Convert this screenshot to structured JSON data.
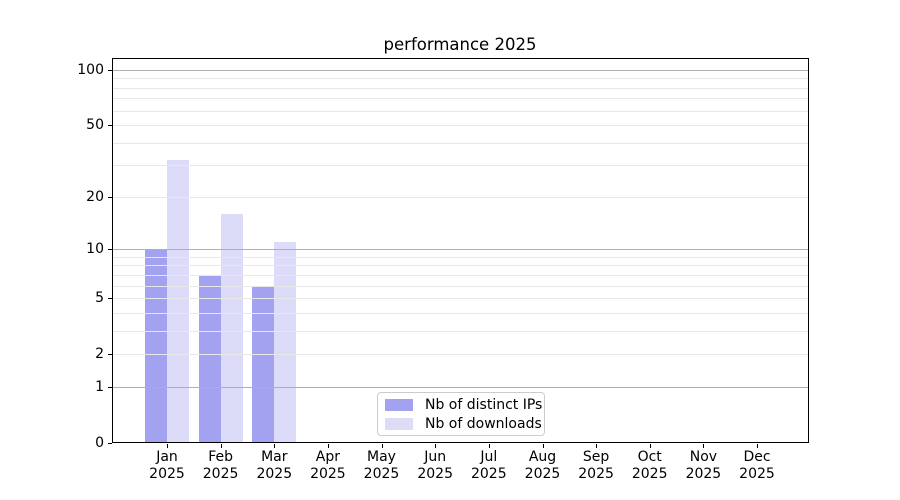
{
  "chart_data": {
    "type": "bar",
    "title": "performance 2025",
    "categories": [
      "Jan 2025",
      "Feb 2025",
      "Mar 2025",
      "Apr 2025",
      "May 2025",
      "Jun 2025",
      "Jul 2025",
      "Aug 2025",
      "Sep 2025",
      "Oct 2025",
      "Nov 2025",
      "Dec 2025"
    ],
    "series": [
      {
        "name": "Nb of distinct IPs",
        "color": "#a2a2f0",
        "values": [
          10,
          7,
          6,
          0,
          0,
          0,
          0,
          0,
          0,
          0,
          0,
          0
        ]
      },
      {
        "name": "Nb of downloads",
        "color": "#dcdcf8",
        "values": [
          32,
          16,
          11,
          0,
          0,
          0,
          0,
          0,
          0,
          0,
          0,
          0
        ]
      }
    ],
    "yscale": "log1p",
    "ylim": [
      0,
      116
    ],
    "y_ticks": [
      0,
      1,
      2,
      5,
      10,
      20,
      50,
      100
    ],
    "y_major_gridlines": [
      1,
      10,
      100
    ],
    "y_minor_gridlines": [
      2,
      3,
      4,
      5,
      6,
      7,
      8,
      9,
      20,
      30,
      40,
      50,
      60,
      70,
      80,
      90
    ],
    "grid": "on",
    "legend_position": "lower center",
    "colors": {
      "major_grid": "#b0b0b0",
      "minor_grid": "#e8e8e8",
      "spine": "#000000",
      "text": "#000000"
    }
  }
}
